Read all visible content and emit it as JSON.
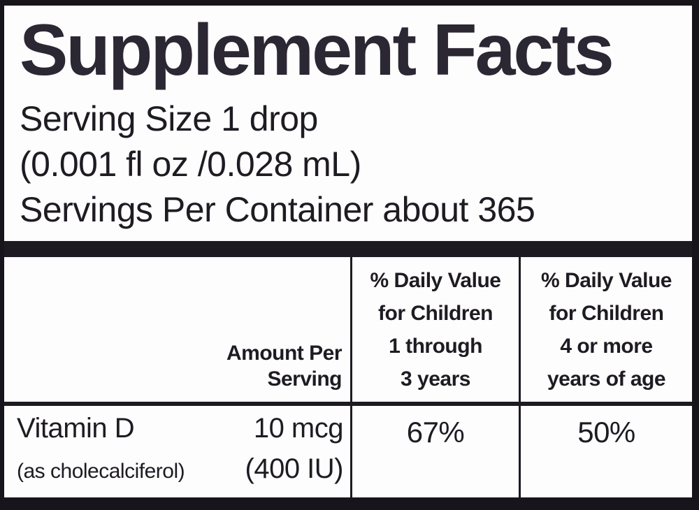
{
  "label": {
    "title": "Supplement Facts",
    "serving_lines": [
      "Serving Size 1 drop",
      "(0.001 fl oz /0.028 mL)",
      "Servings Per Container about 365"
    ]
  },
  "table": {
    "header": {
      "amount": [
        "Amount Per",
        "Serving"
      ],
      "dv_children_1_3": [
        "% Daily Value",
        "for Children",
        "1 through",
        "3 years"
      ],
      "dv_children_4_plus": [
        "% Daily Value",
        "for Children",
        "4 or more",
        "years of age"
      ]
    },
    "row": {
      "nutrient": "Vitamin D",
      "nutrient_detail": "(as cholecalciferol)",
      "amount": "10 mcg",
      "amount_detail": "(400 IU)",
      "dv_children_1_3": "67%",
      "dv_children_4_plus": "50%"
    }
  },
  "colors": {
    "frame": "#1d1a21",
    "panel": "#fdfdfd",
    "text": "#1e1b22",
    "title": "#2b2733"
  }
}
